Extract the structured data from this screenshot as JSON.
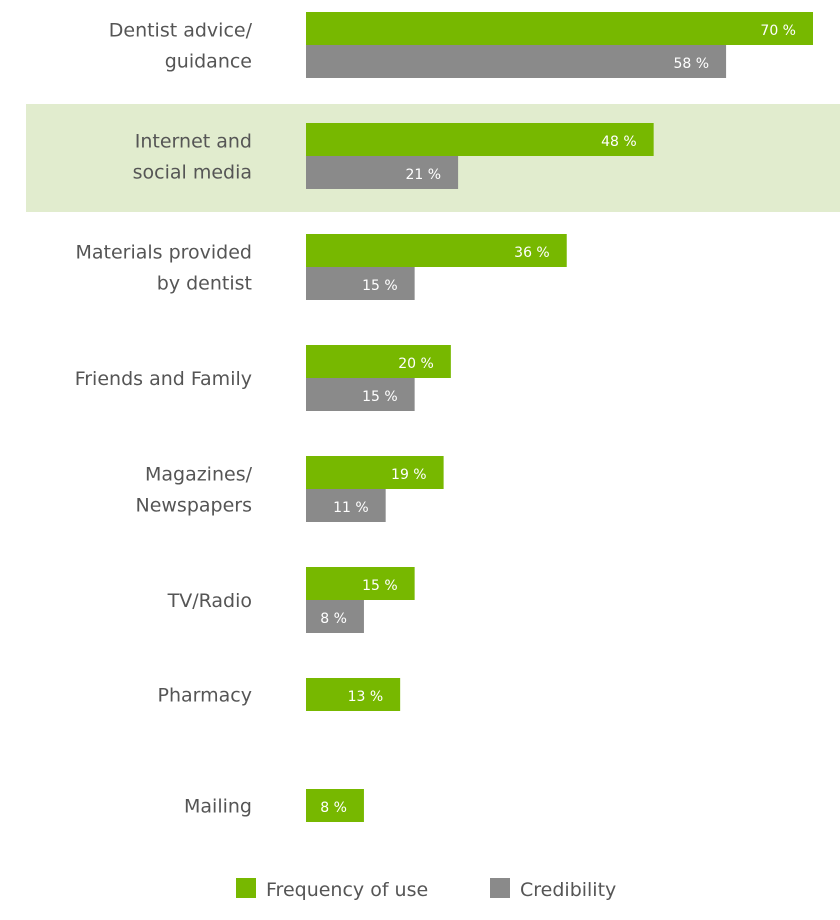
{
  "chart_data": {
    "type": "bar",
    "orientation": "horizontal",
    "title": "",
    "xlabel": "",
    "ylabel": "",
    "categories": [
      [
        "Dentist advice/",
        "guidance"
      ],
      [
        "Internet and",
        "social media"
      ],
      [
        "Materials provided",
        "by dentist"
      ],
      [
        "Friends and Family"
      ],
      [
        "Magazines/",
        "Newspapers"
      ],
      [
        "TV/Radio"
      ],
      [
        "Pharmacy"
      ],
      [
        "Mailing"
      ]
    ],
    "series": [
      {
        "name": "Frequency of use",
        "color": "#77b800",
        "values": [
          70,
          48,
          36,
          20,
          19,
          15,
          13,
          8
        ],
        "value_labels": [
          "70 %",
          "48 %",
          "36 %",
          "20 %",
          "19 %",
          "15 %",
          "13 %",
          "8 %"
        ]
      },
      {
        "name": "Credibility",
        "color": "#8a8a8a",
        "values": [
          58,
          21,
          15,
          15,
          11,
          8,
          null,
          null
        ],
        "value_labels": [
          "58 %",
          "21 %",
          "15 %",
          "15 %",
          "11 %",
          "8 %",
          null,
          null
        ]
      }
    ],
    "highlight_category_index": 1,
    "highlight_color": "#e1ecce",
    "xlim": [
      0,
      70
    ],
    "grid": false,
    "legend_position": "bottom-center"
  }
}
